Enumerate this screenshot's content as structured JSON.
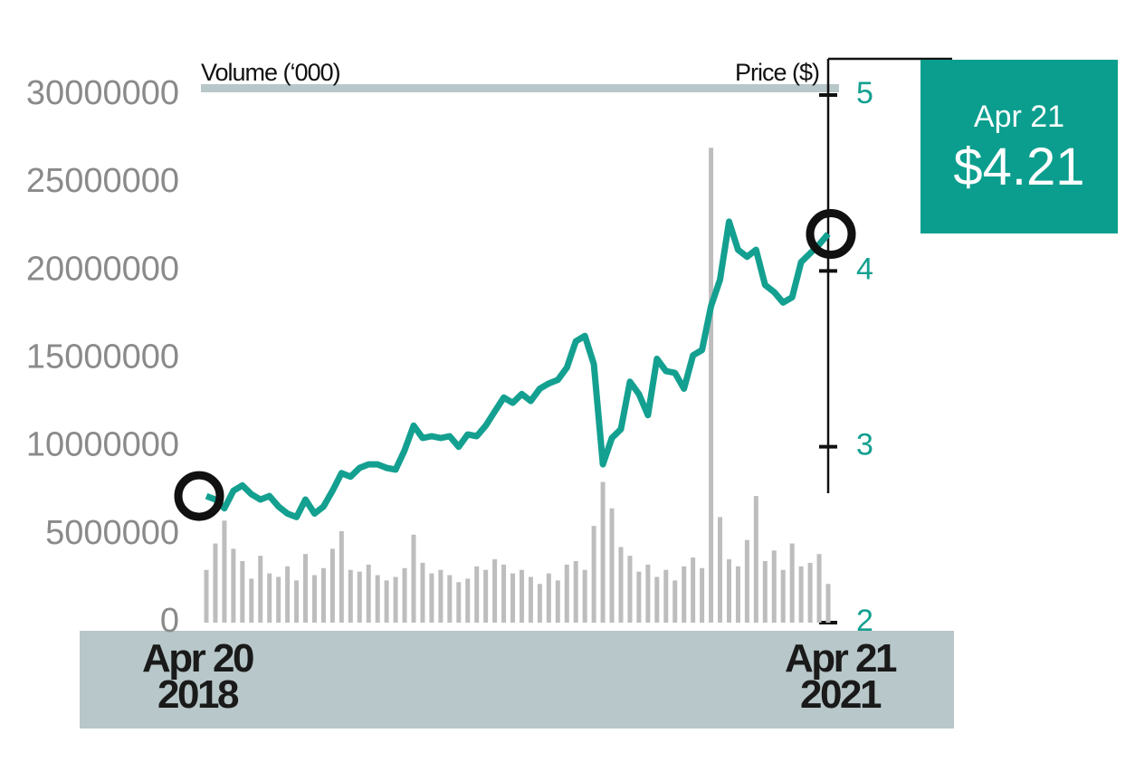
{
  "chart_data": {
    "type": "bar-line",
    "y_axis_label": "Volume (‘000)",
    "y2_axis_label": "Price ($)",
    "ylim": [
      0,
      30000000
    ],
    "yticks": [
      0,
      5000000,
      10000000,
      15000000,
      20000000,
      25000000,
      30000000
    ],
    "y2lim": [
      2,
      5
    ],
    "y2ticks": [
      2,
      3,
      4,
      5
    ],
    "x_labels": [
      "Apr 20\n2018",
      "Apr 21\n2021"
    ],
    "series": [
      {
        "name": "Volume",
        "type": "bar",
        "color": "#bdbdbd",
        "values": [
          3000000,
          4500000,
          5800000,
          4200000,
          3500000,
          2500000,
          3800000,
          2800000,
          2600000,
          3200000,
          2400000,
          3900000,
          2700000,
          3100000,
          4200000,
          5200000,
          3000000,
          2900000,
          3300000,
          2700000,
          2400000,
          2600000,
          3100000,
          5000000,
          3400000,
          2800000,
          3000000,
          2700000,
          2300000,
          2500000,
          3200000,
          3000000,
          3600000,
          3300000,
          2800000,
          3000000,
          2600000,
          2200000,
          2800000,
          2400000,
          3300000,
          3500000,
          3000000,
          5500000,
          8000000,
          6500000,
          4300000,
          3800000,
          2900000,
          3300000,
          2600000,
          3000000,
          2400000,
          3200000,
          3700000,
          3100000,
          27000000,
          6000000,
          3600000,
          3200000,
          4700000,
          7200000,
          3500000,
          4100000,
          3000000,
          4500000,
          3200000,
          3400000,
          3900000,
          2200000
        ]
      },
      {
        "name": "Price",
        "type": "line",
        "axis": "y2",
        "color": "#14a090",
        "values": [
          2.72,
          2.7,
          2.65,
          2.75,
          2.78,
          2.73,
          2.7,
          2.72,
          2.66,
          2.62,
          2.6,
          2.7,
          2.62,
          2.66,
          2.75,
          2.85,
          2.83,
          2.88,
          2.9,
          2.9,
          2.88,
          2.87,
          2.98,
          3.12,
          3.05,
          3.06,
          3.05,
          3.06,
          3.0,
          3.07,
          3.06,
          3.12,
          3.2,
          3.28,
          3.25,
          3.3,
          3.26,
          3.33,
          3.36,
          3.38,
          3.45,
          3.6,
          3.63,
          3.47,
          2.9,
          3.05,
          3.1,
          3.37,
          3.3,
          3.18,
          3.5,
          3.43,
          3.42,
          3.33,
          3.52,
          3.55,
          3.8,
          3.95,
          4.28,
          4.12,
          4.08,
          4.12,
          3.92,
          3.88,
          3.82,
          3.85,
          4.05,
          4.1,
          4.15,
          4.21
        ]
      }
    ],
    "callout": {
      "label": "Apr 21",
      "value": 4.21,
      "value_label": "$4.21",
      "color": "#0b9e8e"
    }
  }
}
